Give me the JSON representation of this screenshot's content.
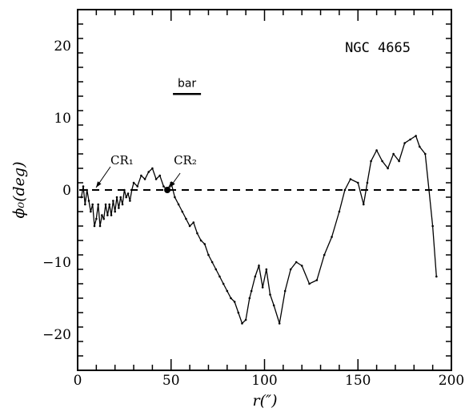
{
  "chart_data": {
    "type": "line",
    "title": "NGC 4665",
    "xlabel": "r(″)",
    "ylabel": "ϕ₀(deg)",
    "xlim": [
      0,
      200
    ],
    "ylim": [
      -25,
      25
    ],
    "x_ticks": [
      0,
      50,
      100,
      150,
      200
    ],
    "y_ticks": [
      -20,
      -10,
      0,
      10,
      20
    ],
    "grid": false,
    "legend": "none",
    "reference_line": {
      "y": 0,
      "style": "dashed"
    },
    "bar_marker": {
      "label": "bar",
      "x_range": [
        51,
        66
      ],
      "y": 13.3
    },
    "annotations": [
      {
        "text": "CR₁",
        "x": 9,
        "y": 0
      },
      {
        "text": "CR₂",
        "x": 48,
        "y": 0
      }
    ],
    "series": [
      {
        "x": [
          2,
          3,
          4,
          5,
          6,
          7,
          8,
          9,
          10,
          11,
          12,
          13,
          14,
          15,
          16,
          17,
          18,
          19,
          20,
          21,
          22,
          23,
          24,
          25,
          26,
          27,
          28,
          29,
          30,
          32,
          34,
          36,
          38,
          40,
          42,
          44,
          46,
          48,
          50,
          52,
          54,
          56,
          58,
          60,
          62,
          64,
          66,
          68,
          70,
          72,
          74,
          76,
          78,
          80,
          82,
          84,
          86,
          88,
          90,
          92,
          93,
          95,
          97,
          99,
          101,
          103,
          105,
          108,
          111,
          114,
          117,
          120,
          124,
          128,
          132,
          136,
          140,
          143,
          146,
          150,
          153,
          155,
          157,
          160,
          163,
          166,
          169,
          172,
          175,
          178,
          181,
          183,
          186,
          188,
          190,
          192
        ],
        "y": [
          -1,
          0.5,
          -2,
          0,
          -1.5,
          -3,
          -2,
          -5,
          -4,
          -2,
          -5,
          -3.5,
          -4,
          -2,
          -3.5,
          -2,
          -3.5,
          -1.5,
          -3,
          -1,
          -2.5,
          -1,
          -2,
          0,
          -1,
          -0.5,
          -1.5,
          0,
          1,
          0.5,
          2,
          1.5,
          2.5,
          3,
          1.5,
          2,
          0.5,
          0,
          1,
          -1,
          -2,
          -3,
          -4,
          -5,
          -4.5,
          -6,
          -7,
          -7.5,
          -9,
          -10,
          -11,
          -12,
          -13,
          -14,
          -15,
          -15.5,
          -17,
          -18.5,
          -18,
          -15,
          -14,
          -12,
          -10.5,
          -13.5,
          -11,
          -14.5,
          -16,
          -18.5,
          -14,
          -11,
          -10,
          -10.5,
          -13,
          -12.5,
          -9,
          -6.5,
          -3,
          0,
          1.5,
          1,
          -2,
          1,
          4,
          5.5,
          4,
          3,
          5,
          4,
          6.5,
          7,
          7.5,
          6,
          5,
          0,
          -5,
          -12
        ]
      }
    ]
  }
}
